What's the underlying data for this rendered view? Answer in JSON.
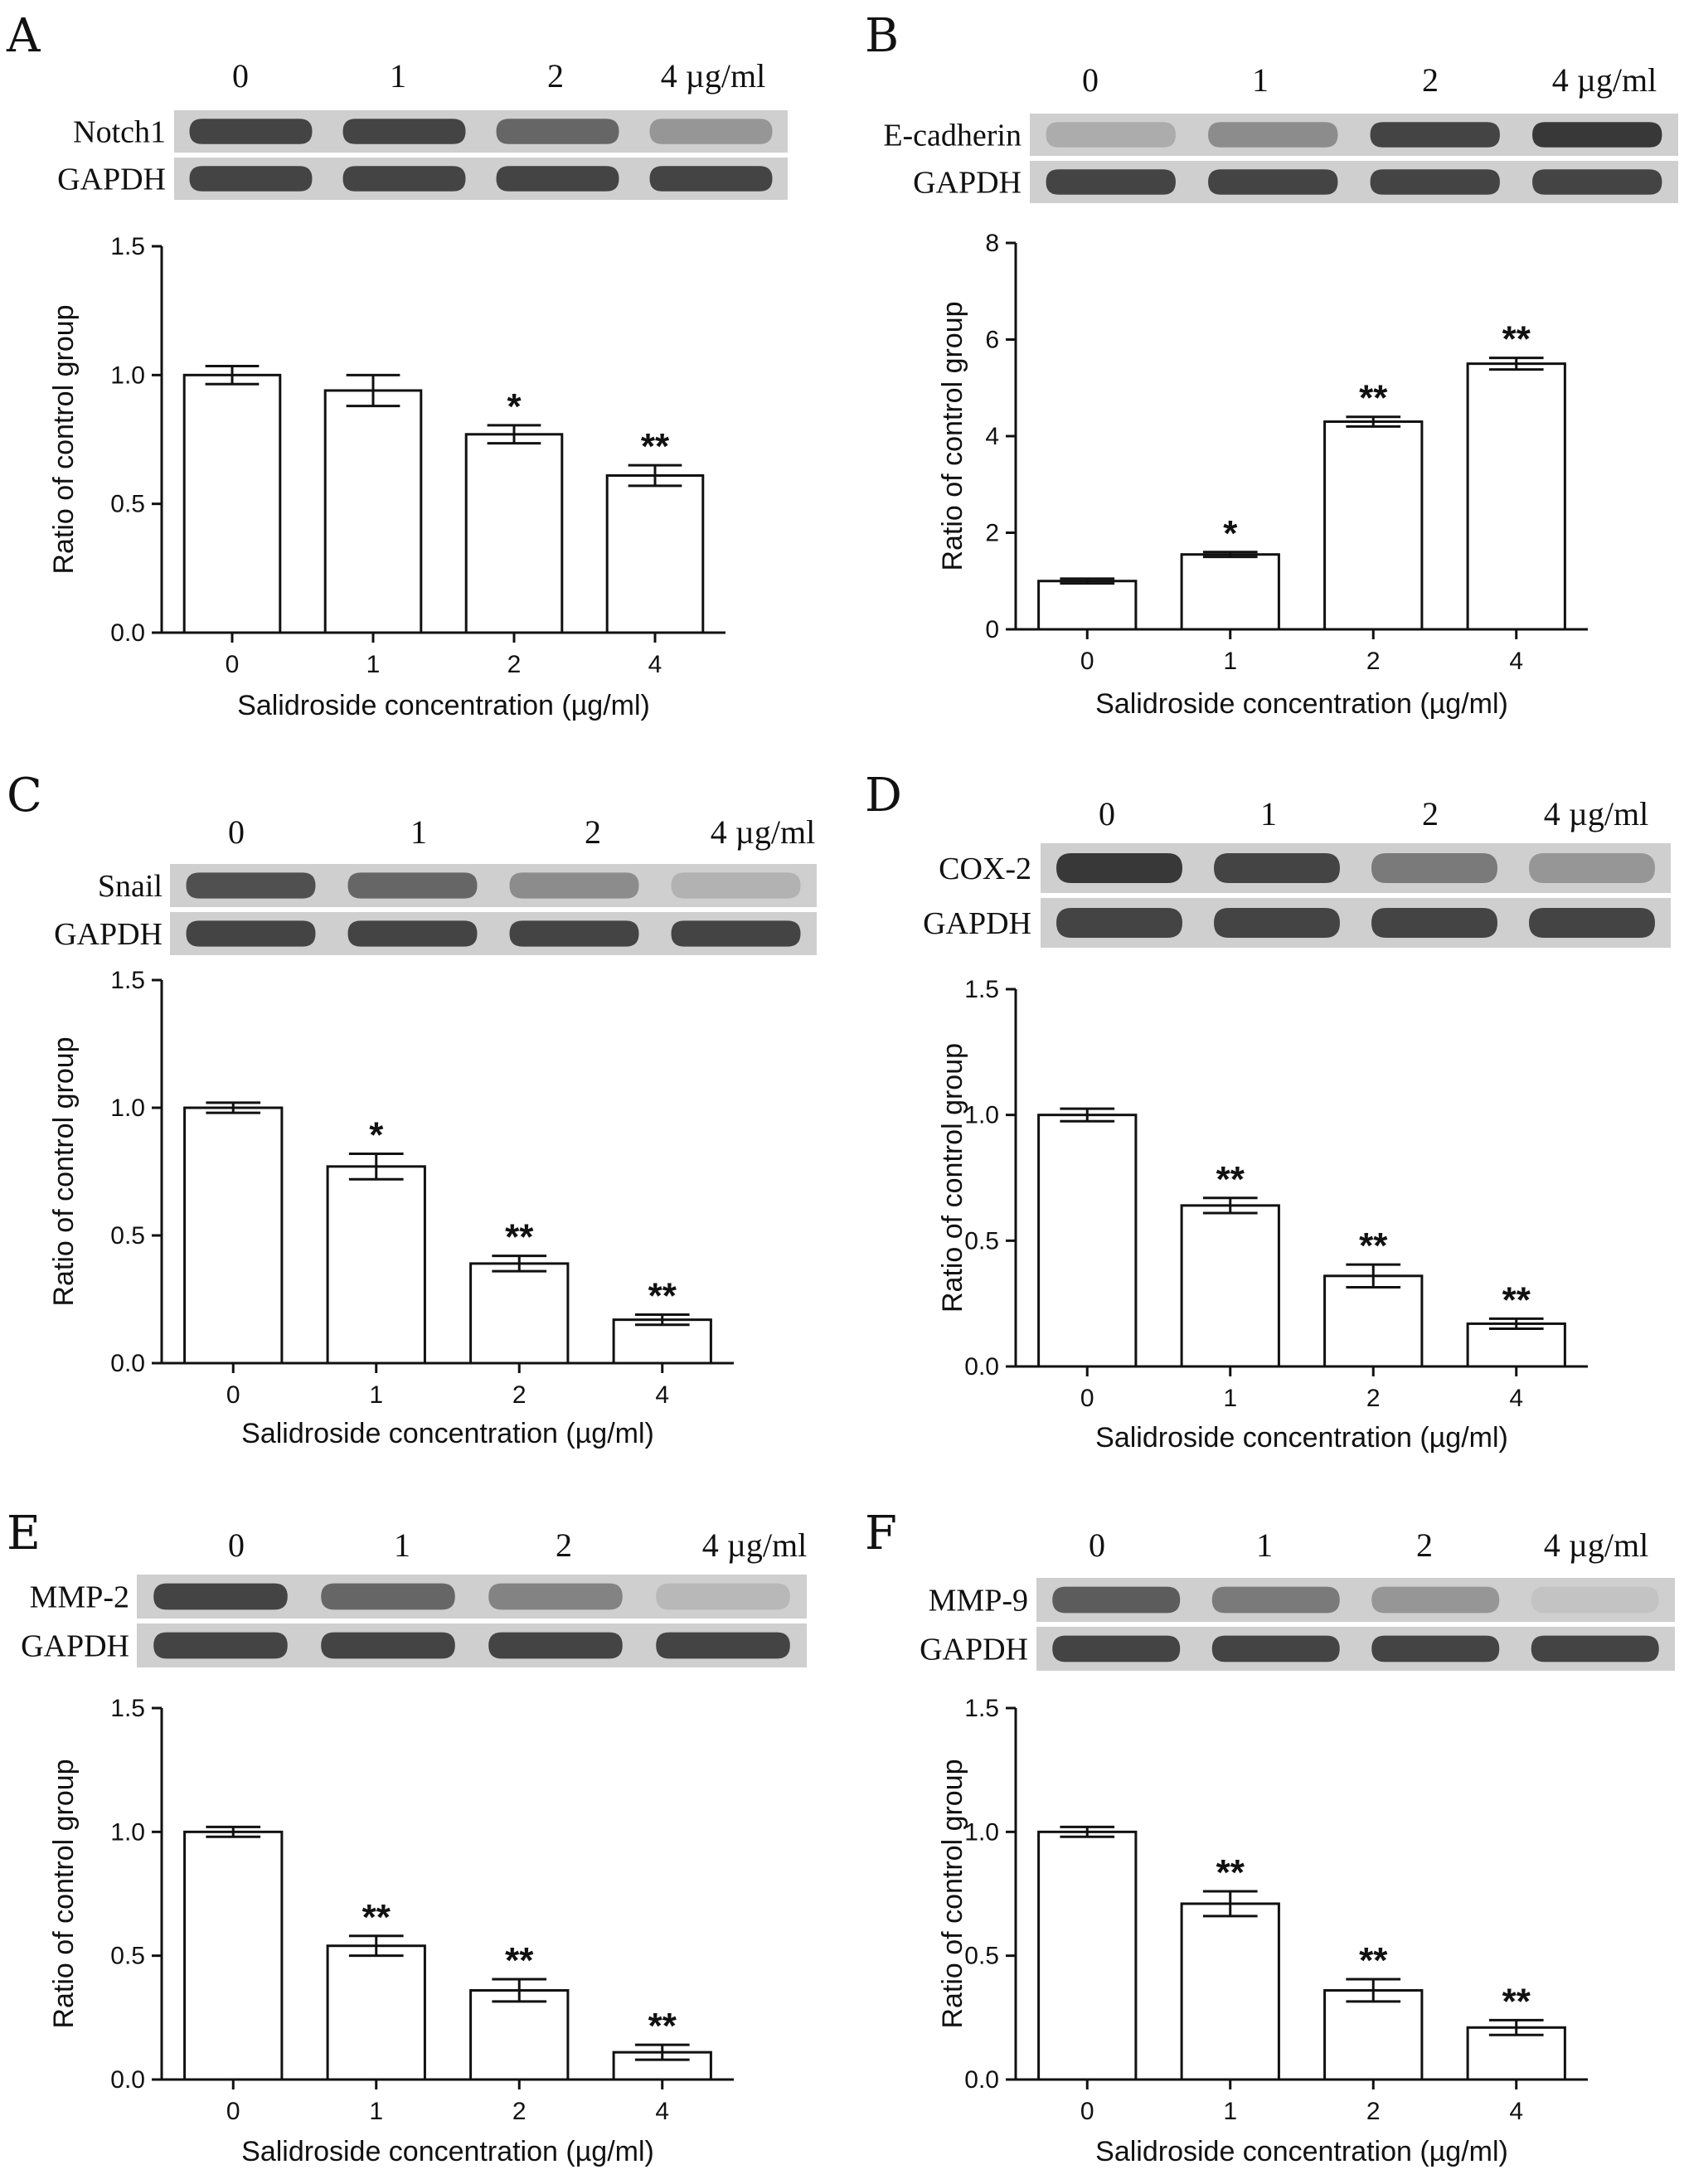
{
  "figure": {
    "lane_labels": [
      "0",
      "1",
      "2",
      "4 µg/ml"
    ],
    "loading_control": "GAPDH"
  },
  "chart_data": [
    {
      "panel": "A",
      "type": "bar",
      "protein": "Notch1",
      "categories": [
        "0",
        "1",
        "2",
        "4"
      ],
      "values": [
        1.0,
        0.94,
        0.77,
        0.61
      ],
      "errors": [
        0.035,
        0.06,
        0.035,
        0.04
      ],
      "significance": [
        "",
        "",
        "*",
        "**"
      ],
      "xlabel": "Salidroside concentration (µg/ml)",
      "ylabel": "Ratio of control group",
      "ylim": [
        0,
        1.5
      ],
      "yticks": [
        "0.0",
        "0.5",
        "1.0",
        "1.5"
      ],
      "ytick_values": [
        0,
        0.5,
        1.0,
        1.5
      ],
      "bands": {
        "target": [
          0.85,
          0.85,
          0.7,
          0.45
        ],
        "control": [
          0.85,
          0.85,
          0.85,
          0.85
        ]
      }
    },
    {
      "panel": "B",
      "type": "bar",
      "protein": "E-cadherin",
      "categories": [
        "0",
        "1",
        "2",
        "4"
      ],
      "values": [
        1.0,
        1.55,
        4.3,
        5.5
      ],
      "errors": [
        0.05,
        0.05,
        0.1,
        0.12
      ],
      "significance": [
        "",
        "*",
        "**",
        "**"
      ],
      "xlabel": "Salidroside concentration (µg/ml)",
      "ylabel": "Ratio of control group",
      "ylim": [
        0,
        8
      ],
      "yticks": [
        "0",
        "2",
        "4",
        "6",
        "8"
      ],
      "ytick_values": [
        0,
        2,
        4,
        6,
        8
      ],
      "bands": {
        "target": [
          0.3,
          0.5,
          0.85,
          0.9
        ],
        "control": [
          0.85,
          0.85,
          0.85,
          0.85
        ]
      }
    },
    {
      "panel": "C",
      "type": "bar",
      "protein": "Snail",
      "categories": [
        "0",
        "1",
        "2",
        "4"
      ],
      "values": [
        1.0,
        0.77,
        0.39,
        0.17
      ],
      "errors": [
        0.02,
        0.05,
        0.03,
        0.02
      ],
      "significance": [
        "",
        "*",
        "**",
        "**"
      ],
      "xlabel": "Salidroside concentration (µg/ml)",
      "ylabel": "Ratio of control group",
      "ylim": [
        0,
        1.5
      ],
      "yticks": [
        "0.0",
        "0.5",
        "1.0",
        "1.5"
      ],
      "ytick_values": [
        0,
        0.5,
        1.0,
        1.5
      ],
      "bands": {
        "target": [
          0.8,
          0.7,
          0.5,
          0.25
        ],
        "control": [
          0.85,
          0.85,
          0.85,
          0.85
        ]
      }
    },
    {
      "panel": "D",
      "type": "bar",
      "protein": "COX-2",
      "categories": [
        "0",
        "1",
        "2",
        "4"
      ],
      "values": [
        1.0,
        0.64,
        0.36,
        0.17
      ],
      "errors": [
        0.025,
        0.03,
        0.045,
        0.02
      ],
      "significance": [
        "",
        "**",
        "**",
        "**"
      ],
      "xlabel": "Salidroside concentration (µg/ml)",
      "ylabel": "Ratio of control group",
      "ylim": [
        0,
        1.5
      ],
      "yticks": [
        "0.0",
        "0.5",
        "1.0",
        "1.5"
      ],
      "ytick_values": [
        0,
        0.5,
        1.0,
        1.5
      ],
      "bands": {
        "target": [
          0.9,
          0.85,
          0.6,
          0.45
        ],
        "control": [
          0.85,
          0.85,
          0.85,
          0.85
        ]
      }
    },
    {
      "panel": "E",
      "type": "bar",
      "protein": "MMP-2",
      "categories": [
        "0",
        "1",
        "2",
        "4"
      ],
      "values": [
        1.0,
        0.54,
        0.36,
        0.11
      ],
      "errors": [
        0.02,
        0.04,
        0.045,
        0.03
      ],
      "significance": [
        "",
        "**",
        "**",
        "**"
      ],
      "xlabel": "Salidroside concentration (µg/ml)",
      "ylabel": "Ratio of control group",
      "ylim": [
        0,
        1.5
      ],
      "yticks": [
        "0.0",
        "0.5",
        "1.0",
        "1.5"
      ],
      "ytick_values": [
        0,
        0.5,
        1.0,
        1.5
      ],
      "bands": {
        "target": [
          0.85,
          0.7,
          0.55,
          0.2
        ],
        "control": [
          0.85,
          0.85,
          0.85,
          0.85
        ]
      }
    },
    {
      "panel": "F",
      "type": "bar",
      "protein": "MMP-9",
      "categories": [
        "0",
        "1",
        "2",
        "4"
      ],
      "values": [
        1.0,
        0.71,
        0.36,
        0.21
      ],
      "errors": [
        0.02,
        0.05,
        0.045,
        0.03
      ],
      "significance": [
        "",
        "**",
        "**",
        "**"
      ],
      "xlabel": "Salidroside concentration (µg/ml)",
      "ylabel": "Ratio of control group",
      "ylim": [
        0,
        1.5
      ],
      "yticks": [
        "0.0",
        "0.5",
        "1.0",
        "1.5"
      ],
      "ytick_values": [
        0,
        0.5,
        1.0,
        1.5
      ],
      "bands": {
        "target": [
          0.75,
          0.6,
          0.45,
          0.1
        ],
        "control": [
          0.85,
          0.85,
          0.85,
          0.85
        ]
      }
    }
  ]
}
